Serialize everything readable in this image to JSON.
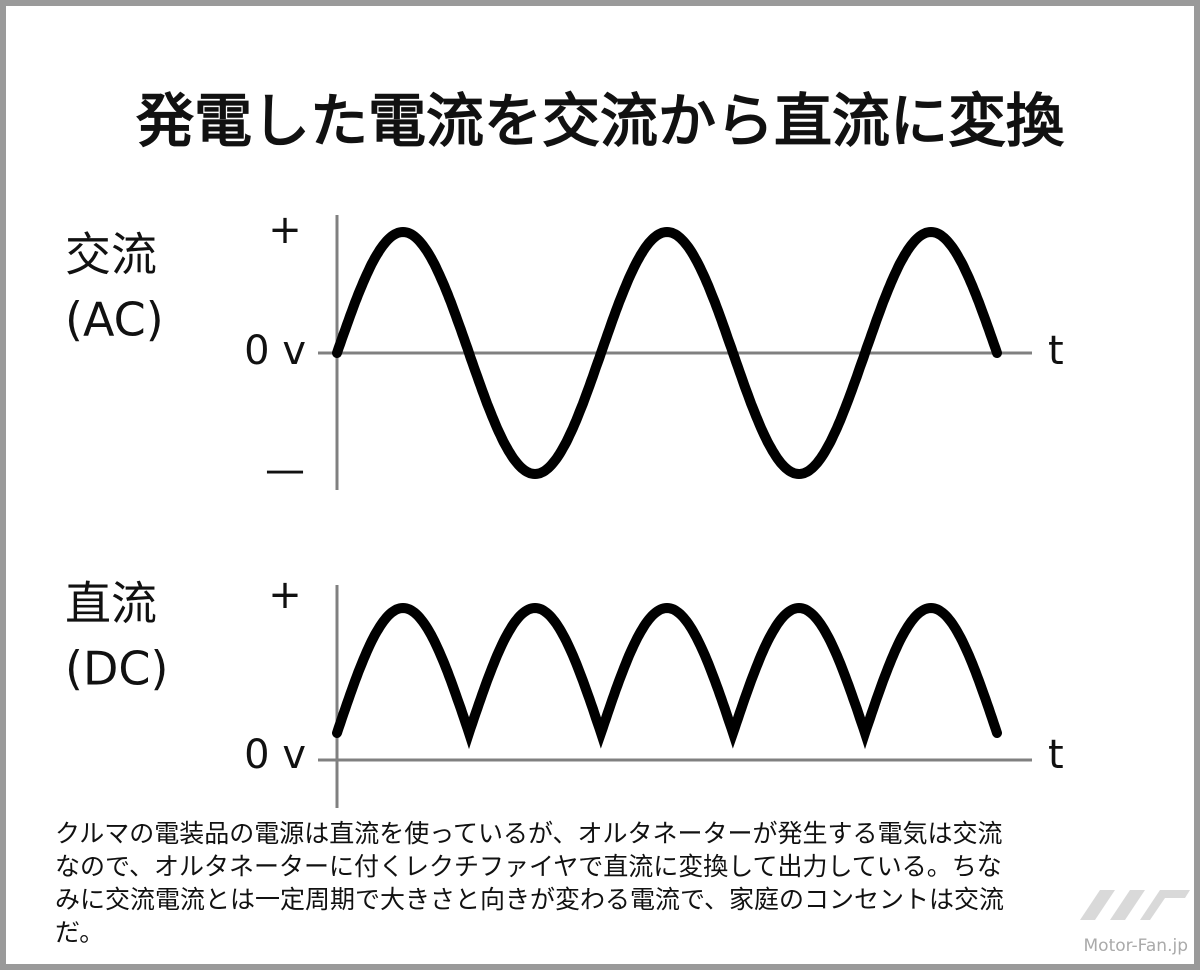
{
  "header": {
    "title": "発電した電流を交流から直流に変換"
  },
  "ac_panel": {
    "label_line1": "交流",
    "label_line2": "(AC)",
    "plus_label": "+",
    "zero_label": "0 v",
    "minus_label": "—",
    "time_label": "t"
  },
  "dc_panel": {
    "label_line1": "直流",
    "label_line2": "(DC)",
    "plus_label": "+",
    "zero_label": "0 v",
    "time_label": "t"
  },
  "caption": {
    "lines": [
      "クルマの電装品の電源は直流を使っているが、オルタネーターが発生する電気は交流",
      "なので、オルタネーターに付くレクチファイヤで直流に変換して出力している。ちな",
      "みに交流電流とは一定周期で大きさと向きが変わる電流で、家庭のコンセントは交流",
      "だ。"
    ]
  },
  "watermark": {
    "text": "Motor-Fan.jp"
  }
}
